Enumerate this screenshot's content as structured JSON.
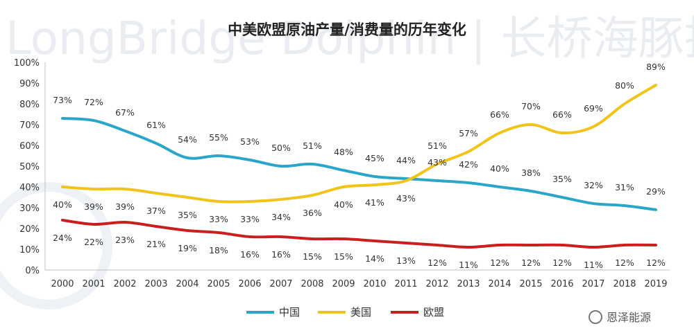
{
  "watermark": {
    "text": "LongBridge Dolphin | 长桥海豚投研",
    "credit": "恩泽能源"
  },
  "chart_data": {
    "type": "line",
    "title": "中美欧盟原油产量/消费量的历年变化",
    "xlabel": "",
    "ylabel": "",
    "x": [
      "2000",
      "2001",
      "2002",
      "2003",
      "2004",
      "2005",
      "2006",
      "2007",
      "2008",
      "2009",
      "2010",
      "2011",
      "2012",
      "2013",
      "2014",
      "2015",
      "2016",
      "2017",
      "2018",
      "2019"
    ],
    "y_ticks": [
      "0%",
      "10%",
      "20%",
      "30%",
      "40%",
      "50%",
      "60%",
      "70%",
      "80%",
      "90%",
      "100%"
    ],
    "ylim": [
      0,
      100
    ],
    "grid": false,
    "legend_position": "bottom-center",
    "series": [
      {
        "name": "中国",
        "color": "#2aa6c9",
        "values": [
          73,
          72,
          67,
          61,
          54,
          55,
          53,
          50,
          51,
          48,
          45,
          44,
          43,
          42,
          40,
          38,
          35,
          32,
          31,
          29
        ],
        "labels": [
          "73%",
          "72%",
          "67%",
          "61%",
          "54%",
          "55%",
          "53%",
          "50%",
          "51%",
          "48%",
          "45%",
          "44%",
          "43%",
          "42%",
          "40%",
          "38%",
          "35%",
          "32%",
          "31%",
          "29%"
        ]
      },
      {
        "name": "美国",
        "color": "#f0c419",
        "values": [
          40,
          39,
          39,
          37,
          35,
          33,
          33,
          34,
          36,
          40,
          41,
          43,
          51,
          57,
          66,
          70,
          66,
          69,
          80,
          89
        ],
        "labels": [
          "40%",
          "39%",
          "39%",
          "37%",
          "35%",
          "33%",
          "33%",
          "34%",
          "36%",
          "40%",
          "41%",
          "43%",
          "51%",
          "57%",
          "66%",
          "70%",
          "66%",
          "69%",
          "80%",
          "89%"
        ]
      },
      {
        "name": "欧盟",
        "color": "#c8201f",
        "values": [
          24,
          22,
          23,
          21,
          19,
          18,
          16,
          16,
          15,
          15,
          14,
          13,
          12,
          11,
          12,
          12,
          12,
          11,
          12,
          12
        ],
        "labels": [
          "24%",
          "22%",
          "23%",
          "21%",
          "19%",
          "18%",
          "16%",
          "16%",
          "15%",
          "15%",
          "14%",
          "13%",
          "12%",
          "11%",
          "12%",
          "12%",
          "12%",
          "11%",
          "12%",
          "12%"
        ]
      }
    ]
  }
}
